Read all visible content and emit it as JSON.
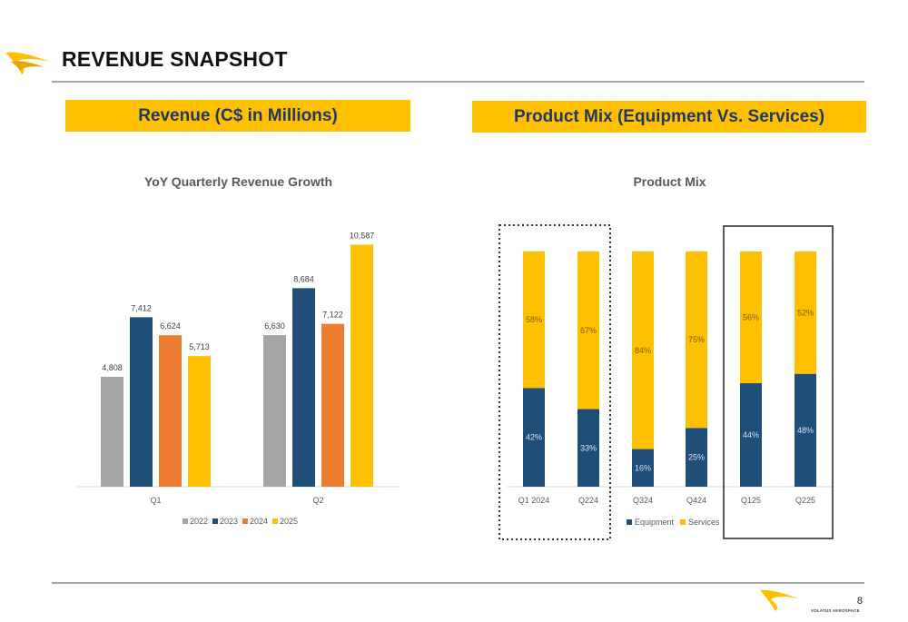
{
  "header": {
    "title": "REVENUE SNAPSHOT"
  },
  "banners": {
    "left": "Revenue (C$ in Millions)",
    "right": "Product Mix (Equipment Vs. Services)"
  },
  "footer": {
    "page_number": "8",
    "brand": "VOLATUS AEROSPACE"
  },
  "colors": {
    "accent": "#ffc000",
    "navy": "#1f4e79",
    "gray": "#a5a5a5",
    "orange": "#ed7d31"
  },
  "chart_data": [
    {
      "type": "bar",
      "title": "YoY Quarterly Revenue Growth",
      "categories": [
        "Q1",
        "Q2"
      ],
      "series": [
        {
          "name": "2022",
          "color": "#a5a5a5",
          "values": [
            4808,
            6630
          ],
          "labels": [
            "4,808",
            "6,630"
          ]
        },
        {
          "name": "2023",
          "color": "#1f4e79",
          "values": [
            7412,
            8684
          ],
          "labels": [
            "7,412",
            "8,684"
          ]
        },
        {
          "name": "2024",
          "color": "#ed7d31",
          "values": [
            6624,
            7122
          ],
          "labels": [
            "6,624",
            "7,122"
          ]
        },
        {
          "name": "2025",
          "color": "#ffc000",
          "values": [
            5713,
            10587
          ],
          "labels": [
            "5,713",
            "10,587"
          ]
        }
      ],
      "ylim": [
        0,
        12000
      ],
      "grid": false,
      "legend": "bottom"
    },
    {
      "type": "bar",
      "stacked": true,
      "title": "Product Mix",
      "categories": [
        "Q1 2024",
        "Q224",
        "Q324",
        "Q424",
        "Q125",
        "Q225"
      ],
      "series": [
        {
          "name": "Equipment",
          "color": "#1f4e79",
          "values": [
            42,
            33,
            16,
            25,
            44,
            48
          ],
          "labels": [
            "42%",
            "33%",
            "16%",
            "25%",
            "44%",
            "48%"
          ]
        },
        {
          "name": "Services",
          "color": "#ffc000",
          "values": [
            58,
            67,
            84,
            75,
            56,
            52
          ],
          "labels": [
            "58%",
            "67%",
            "84%",
            "75%",
            "56%",
            "52%"
          ]
        }
      ],
      "ylim": [
        0,
        100
      ],
      "grid": false,
      "legend": "bottom"
    }
  ]
}
